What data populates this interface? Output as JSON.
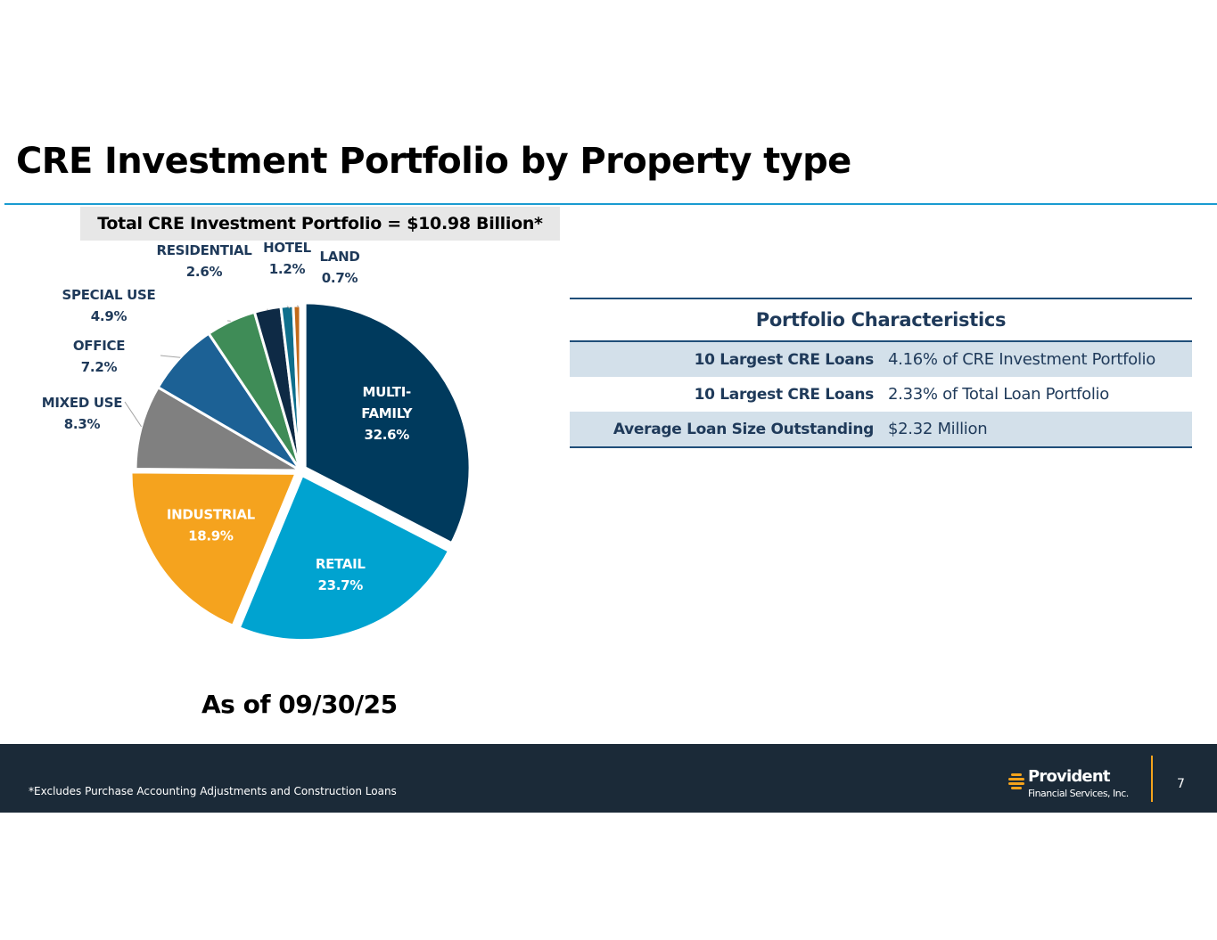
{
  "slide": {
    "title": "CRE Investment Portfolio by Property type",
    "total_banner": "Total CRE Investment Portfolio = $10.98 Billion*",
    "as_of": "As of 09/30/25"
  },
  "chart_data": {
    "type": "pie",
    "title": "",
    "slices": [
      {
        "name_lines": [
          "MULTI-",
          "FAMILY"
        ],
        "value": 32.6,
        "label": "32.6%",
        "color": "#003a5d",
        "text_color": "#ffffff"
      },
      {
        "name_lines": [
          "RETAIL"
        ],
        "value": 23.7,
        "label": "23.7%",
        "color": "#00a3d0",
        "text_color": "#ffffff"
      },
      {
        "name_lines": [
          "INDUSTRIAL"
        ],
        "value": 18.9,
        "label": "18.9%",
        "color": "#f5a31e",
        "text_color": "#ffffff"
      },
      {
        "name_lines": [
          "MIXED USE"
        ],
        "value": 8.3,
        "label": "8.3%",
        "color": "#808080",
        "text_color": "#1f3a5a"
      },
      {
        "name_lines": [
          "OFFICE"
        ],
        "value": 7.2,
        "label": "7.2%",
        "color": "#1c6195",
        "text_color": "#1f3a5a"
      },
      {
        "name_lines": [
          "SPECIAL USE"
        ],
        "value": 4.9,
        "label": "4.9%",
        "color": "#3f8c57",
        "text_color": "#1f3a5a"
      },
      {
        "name_lines": [
          "RESIDENTIAL"
        ],
        "value": 2.6,
        "label": "2.6%",
        "color": "#0e2a45",
        "text_color": "#1f3a5a"
      },
      {
        "name_lines": [
          "HOTEL"
        ],
        "value": 1.2,
        "label": "1.2%",
        "color": "#0f6f8c",
        "text_color": "#1f3a5a"
      },
      {
        "name_lines": [
          "LAND"
        ],
        "value": 0.7,
        "label": "0.7%",
        "color": "#c26a1a",
        "text_color": "#1f3a5a"
      }
    ]
  },
  "characteristics": {
    "title": "Portfolio Characteristics",
    "rows": [
      {
        "label": "10 Largest CRE Loans",
        "value": "4.16% of CRE Investment Portfolio"
      },
      {
        "label": "10 Largest CRE Loans",
        "value": "2.33% of Total Loan Portfolio"
      },
      {
        "label": "Average Loan Size Outstanding",
        "value": "$2.32 Million"
      }
    ]
  },
  "footer": {
    "footnote": "*Excludes Purchase Accounting Adjustments and Construction Loans",
    "logo_name": "Provident",
    "logo_sub": "Financial Services, Inc.",
    "page_number": "7",
    "background_color": "#1b2a38",
    "accent_color": "#f4a31c"
  }
}
